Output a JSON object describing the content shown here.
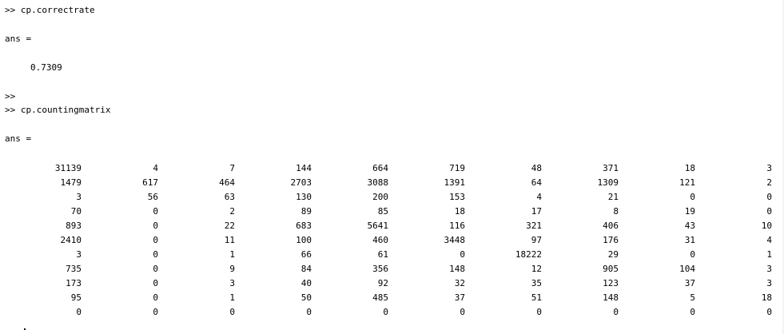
{
  "console": {
    "cmd1": ">> cp.correctrate",
    "ans1_label": "ans =",
    "ans1_value": "0.7309",
    "prompt_empty": ">>",
    "cmd2": ">> cp.countingmatrix",
    "ans2_label": "ans ="
  },
  "matrix": {
    "rows": [
      [
        "31139",
        "4",
        "7",
        "144",
        "664",
        "719",
        "48",
        "371",
        "18",
        "3"
      ],
      [
        "1479",
        "617",
        "464",
        "2703",
        "3088",
        "1391",
        "64",
        "1309",
        "121",
        "2"
      ],
      [
        "3",
        "56",
        "63",
        "130",
        "200",
        "153",
        "4",
        "21",
        "0",
        "0"
      ],
      [
        "70",
        "0",
        "2",
        "89",
        "85",
        "18",
        "17",
        "8",
        "19",
        "0"
      ],
      [
        "893",
        "0",
        "22",
        "683",
        "5641",
        "116",
        "321",
        "406",
        "43",
        "10"
      ],
      [
        "2410",
        "0",
        "11",
        "100",
        "460",
        "3448",
        "97",
        "176",
        "31",
        "4"
      ],
      [
        "3",
        "0",
        "1",
        "66",
        "61",
        "0",
        "18222",
        "29",
        "0",
        "1"
      ],
      [
        "735",
        "0",
        "9",
        "84",
        "356",
        "148",
        "12",
        "905",
        "104",
        "3"
      ],
      [
        "173",
        "0",
        "3",
        "40",
        "92",
        "32",
        "35",
        "123",
        "37",
        "3"
      ],
      [
        "95",
        "0",
        "1",
        "50",
        "485",
        "37",
        "51",
        "148",
        "5",
        "18"
      ],
      [
        "0",
        "0",
        "0",
        "0",
        "0",
        "0",
        "0",
        "0",
        "0",
        "0"
      ]
    ]
  }
}
